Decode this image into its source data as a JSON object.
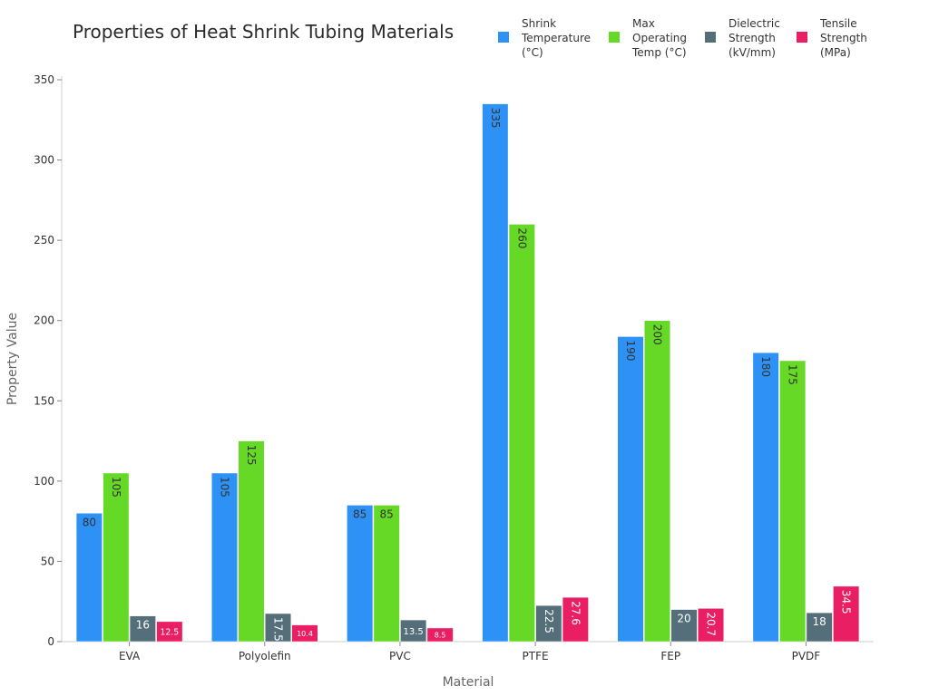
{
  "chart_data": {
    "type": "bar",
    "title": "Properties of Heat Shrink Tubing Materials",
    "xlabel": "Material",
    "ylabel": "Property Value",
    "ylim": [
      0,
      350
    ],
    "yticks": [
      0,
      50,
      100,
      150,
      200,
      250,
      300,
      350
    ],
    "grid": false,
    "legend_position": "top-right",
    "categories": [
      "EVA",
      "Polyolefin",
      "PVC",
      "PTFE",
      "FEP",
      "PVDF"
    ],
    "series": [
      {
        "name": "Shrink Temperature (°C)",
        "legend_lines": [
          "Shrink",
          "Temperature",
          "(°C)"
        ],
        "color": "#2e91f5",
        "values": [
          80,
          105,
          85,
          335,
          190,
          180
        ]
      },
      {
        "name": "Max Operating Temp (°C)",
        "legend_lines": [
          "Max",
          "Operating",
          "Temp (°C)"
        ],
        "color": "#66d926",
        "values": [
          105,
          125,
          85,
          260,
          200,
          175
        ]
      },
      {
        "name": "Dielectric Strength (kV/mm)",
        "legend_lines": [
          "Dielectric",
          "Strength",
          "(kV/mm)"
        ],
        "color": "#546e7a",
        "values": [
          16,
          17.5,
          13.5,
          22.5,
          20,
          18
        ]
      },
      {
        "name": "Tensile Strength (MPa)",
        "legend_lines": [
          "Tensile",
          "Strength",
          "(MPa)"
        ],
        "color": "#e91e63",
        "values": [
          12.5,
          10.4,
          8.5,
          27.6,
          20.7,
          34.5
        ]
      }
    ]
  }
}
